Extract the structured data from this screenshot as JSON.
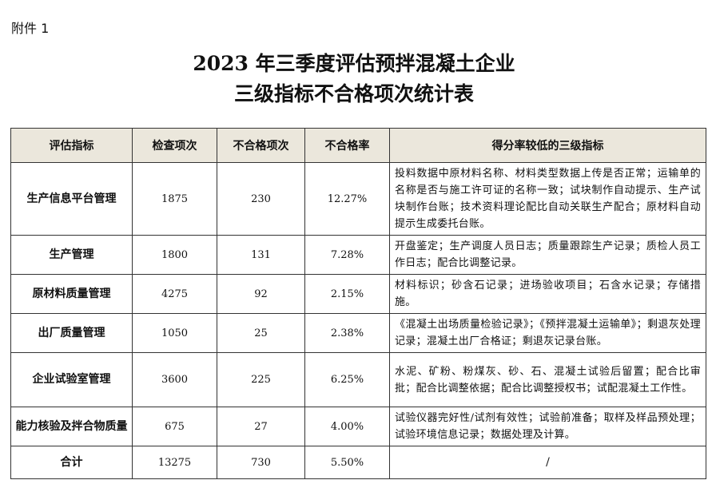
{
  "attachment_label": "附件 1",
  "title": {
    "line1": "2023 年三季度评估预拌混凝土企业",
    "line2": "三级指标不合格项次统计表"
  },
  "table": {
    "headers": [
      "评估指标",
      "检查项次",
      "不合格项次",
      "不合格率",
      "得分率较低的三级指标"
    ],
    "rows": [
      {
        "indicator": "生产信息平台管理",
        "checks": "1875",
        "failures": "230",
        "rate": "12.27%",
        "low_items": "投料数据中原材料名称、材料类型数据上传是否正常；运输单的名称是否与施工许可证的名称一致；试块制作自动提示、生产试块制作台账；技术资料理论配比自动关联生产配合；原材料自动提示生成委托台账。"
      },
      {
        "indicator": "生产管理",
        "checks": "1800",
        "failures": "131",
        "rate": "7.28%",
        "low_items": "开盘鉴定；生产调度人员日志；质量跟踪生产记录；质检人员工作日志；配合比调整记录。"
      },
      {
        "indicator": "原材料质量管理",
        "checks": "4275",
        "failures": "92",
        "rate": "2.15%",
        "low_items": "材料标识；砂含石记录；进场验收项目；石含水记录；存储措施。"
      },
      {
        "indicator": "出厂质量管理",
        "checks": "1050",
        "failures": "25",
        "rate": "2.38%",
        "low_items": "《混凝土出场质量检验记录》；《预拌混凝土运输单》；剩退灰处理记录；混凝土出厂合格证；剩退灰记录台账。"
      },
      {
        "indicator": "企业试验室管理",
        "checks": "3600",
        "failures": "225",
        "rate": "6.25%",
        "low_items": "水泥、矿粉、粉煤灰、砂、石、混凝土试验后留置；配合比审批；配合比调整依据；配合比调整授权书；试配混凝土工作性。"
      },
      {
        "indicator": "能力核验及拌合物质量",
        "checks": "675",
        "failures": "27",
        "rate": "4.00%",
        "low_items": "试验仪器完好性/试剂有效性；试验前准备；取样及样品预处理；试验环境信息记录；数据处理及计算。"
      }
    ],
    "total": {
      "indicator": "合计",
      "checks": "13275",
      "failures": "730",
      "rate": "5.50%",
      "low_items": "/"
    }
  }
}
